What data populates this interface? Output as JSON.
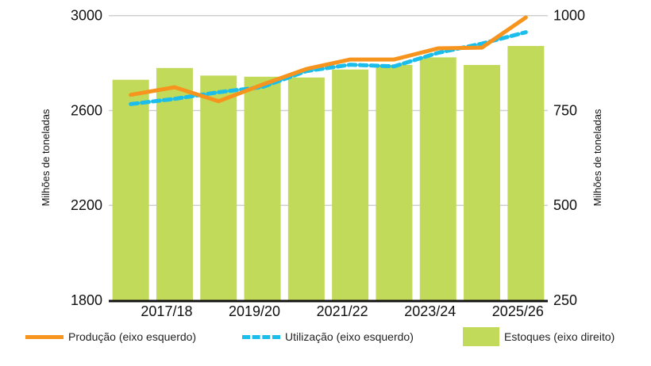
{
  "chart_data": {
    "type": "bar",
    "categories": [
      "",
      "2017/18",
      "",
      "2019/20",
      "",
      "2021/22",
      "",
      "2023/24",
      "",
      "2025/26"
    ],
    "left_axis": {
      "label": "Milhões de toneladas",
      "range": [
        1800,
        3000
      ],
      "ticks": [
        1800,
        2200,
        2600,
        3000
      ]
    },
    "right_axis": {
      "label": "Milhões de toneladas",
      "range": [
        250,
        1000
      ],
      "ticks": [
        250,
        500,
        750,
        1000
      ]
    },
    "grid": true,
    "legend_position": "bottom",
    "series": [
      {
        "name": "Estoques (eixo direito)",
        "type": "bar",
        "axis": "right",
        "color": "#c2da5a",
        "values": [
          831,
          862,
          842,
          839,
          837,
          858,
          870,
          890,
          870,
          920
        ]
      },
      {
        "name": "Produção (eixo esquerdo)",
        "type": "line",
        "axis": "left",
        "color": "#f7941d",
        "style": "solid",
        "values": [
          2666,
          2698,
          2639,
          2709,
          2775,
          2815,
          2815,
          2862,
          2865,
          2992
        ]
      },
      {
        "name": "Utilização (eixo esquerdo)",
        "type": "line",
        "axis": "left",
        "color": "#1bbdeb",
        "style": "dashed",
        "values": [
          2627,
          2649,
          2677,
          2699,
          2766,
          2793,
          2786,
          2843,
          2882,
          2930
        ]
      }
    ]
  }
}
